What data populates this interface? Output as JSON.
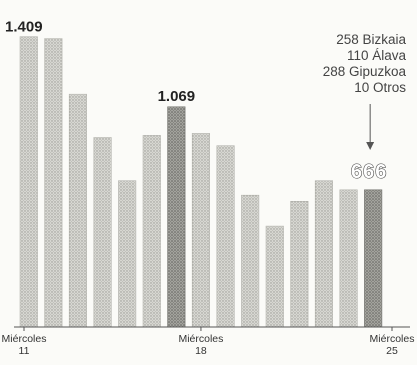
{
  "chart_data": {
    "type": "bar",
    "categories": [
      "Miércoles 11",
      "",
      "",
      "",
      "",
      "",
      "",
      "Miércoles 18",
      "",
      "",
      "",
      "",
      "",
      "",
      "Miércoles 25"
    ],
    "x_tick_labels": [
      {
        "index": 0,
        "line1": "Miércoles",
        "line2": "11"
      },
      {
        "index": 7,
        "line1": "Miércoles",
        "line2": "18"
      },
      {
        "index": 14,
        "line1": "Miércoles",
        "line2": "25"
      }
    ],
    "values": [
      1409,
      1400,
      1130,
      920,
      710,
      930,
      1069,
      940,
      880,
      640,
      490,
      610,
      710,
      666,
      666
    ],
    "highlighted_indices": [
      6,
      14
    ],
    "data_labels": [
      {
        "index": 0,
        "text": "1.409",
        "style": "big"
      },
      {
        "index": 6,
        "text": "1.069",
        "style": "big"
      },
      {
        "index": 14,
        "text": "666",
        "style": "final"
      }
    ],
    "annotation": {
      "lines": [
        "258 Bizkaia",
        "110 Álava",
        "288 Gipuzkoa",
        "10 Otros"
      ],
      "points_to_index": 14
    },
    "ylim": [
      0,
      1500
    ],
    "grid": false,
    "colors": {
      "bar": "#c4c4bf",
      "bar_highlight": "#8e8e89",
      "text": "#222222",
      "background": "#fbfbf8"
    }
  }
}
